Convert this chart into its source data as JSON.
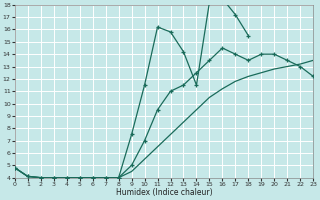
{
  "xlabel": "Humidex (Indice chaleur)",
  "bg_color": "#c6e8e8",
  "grid_color": "#ffffff",
  "line_color": "#1a6b5a",
  "xlim": [
    0,
    23
  ],
  "ylim": [
    4,
    18
  ],
  "xticks": [
    0,
    1,
    2,
    3,
    4,
    5,
    6,
    7,
    8,
    9,
    10,
    11,
    12,
    13,
    14,
    15,
    16,
    17,
    18,
    19,
    20,
    21,
    22,
    23
  ],
  "yticks": [
    4,
    5,
    6,
    7,
    8,
    9,
    10,
    11,
    12,
    13,
    14,
    15,
    16,
    17,
    18
  ],
  "curve1_x": [
    0,
    1,
    2,
    3,
    4,
    5,
    6,
    7,
    8,
    9,
    10,
    11,
    12,
    13,
    14,
    15,
    16,
    17,
    18
  ],
  "curve1_y": [
    4.8,
    4.1,
    4.0,
    4.0,
    4.0,
    4.0,
    4.0,
    4.0,
    4.0,
    7.5,
    11.5,
    16.2,
    15.8,
    14.2,
    11.5,
    18.2,
    18.5,
    17.2,
    15.5
  ],
  "curve2_x": [
    0,
    1,
    2,
    3,
    4,
    5,
    6,
    7,
    8,
    9,
    10,
    11,
    12,
    13,
    14,
    15,
    16,
    17,
    18,
    19,
    20,
    21,
    22,
    23
  ],
  "curve2_y": [
    4.8,
    4.1,
    4.0,
    4.0,
    4.0,
    4.0,
    4.0,
    4.0,
    4.0,
    5.0,
    7.0,
    9.5,
    11.0,
    11.5,
    12.5,
    13.5,
    14.5,
    14.0,
    13.5,
    14.0,
    14.0,
    13.5,
    13.0,
    12.2
  ],
  "curve3_x": [
    0,
    1,
    2,
    3,
    4,
    5,
    6,
    7,
    8,
    9,
    10,
    11,
    12,
    13,
    14,
    15,
    16,
    17,
    18,
    19,
    20,
    21,
    22,
    23
  ],
  "curve3_y": [
    4.8,
    4.1,
    4.0,
    4.0,
    4.0,
    4.0,
    4.0,
    4.0,
    4.0,
    4.5,
    5.5,
    6.5,
    7.5,
    8.5,
    9.5,
    10.5,
    11.2,
    11.8,
    12.2,
    12.5,
    12.8,
    13.0,
    13.2,
    13.5
  ]
}
